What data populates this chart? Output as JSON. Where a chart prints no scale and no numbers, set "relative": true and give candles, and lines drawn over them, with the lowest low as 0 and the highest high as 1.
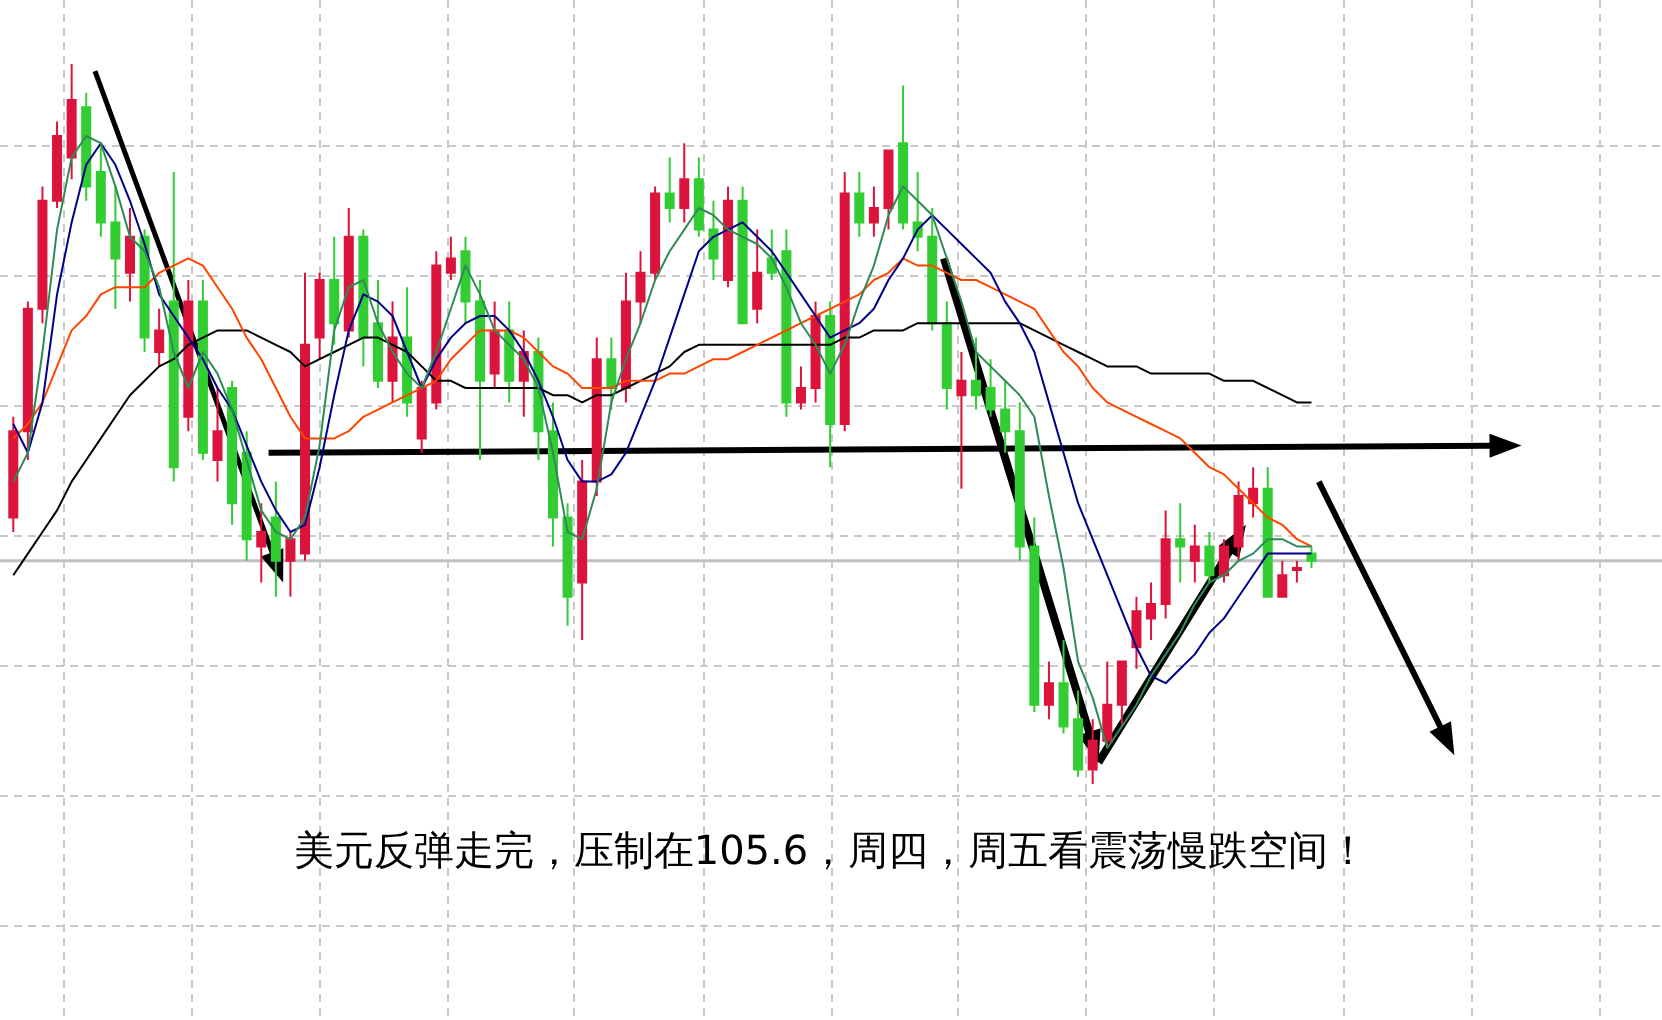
{
  "chart_data": {
    "type": "candlestick",
    "relative": true,
    "grid": true,
    "categories": [
      null,
      null,
      null,
      null,
      null,
      null,
      null,
      null,
      null,
      null,
      null,
      null,
      null,
      null,
      null,
      null,
      null,
      null,
      null,
      null,
      null,
      null,
      null,
      null,
      null,
      null,
      null,
      null,
      null,
      null,
      null,
      null,
      null,
      null,
      null,
      null,
      null,
      null,
      null,
      null,
      null,
      null,
      null,
      null,
      null,
      null,
      null,
      null,
      null,
      null,
      null,
      null,
      null,
      null,
      null,
      null,
      null,
      null,
      null,
      null,
      null,
      null,
      null,
      null,
      null,
      null,
      null,
      null,
      null,
      null,
      null,
      null,
      null,
      null,
      null,
      null,
      null,
      null,
      null,
      null,
      null,
      null,
      null,
      null,
      null,
      null,
      null,
      null,
      null,
      null
    ],
    "ohlc": [
      [
        0.37,
        0.51,
        0.35,
        0.49
      ],
      [
        0.49,
        0.67,
        0.45,
        0.66
      ],
      [
        0.66,
        0.83,
        0.64,
        0.81
      ],
      [
        0.81,
        0.92,
        0.8,
        0.9
      ],
      [
        0.87,
        1.0,
        0.84,
        0.95
      ],
      [
        0.94,
        0.96,
        0.81,
        0.83
      ],
      [
        0.85,
        0.89,
        0.76,
        0.78
      ],
      [
        0.78,
        0.83,
        0.66,
        0.73
      ],
      [
        0.71,
        0.8,
        0.67,
        0.76
      ],
      [
        0.76,
        0.77,
        0.6,
        0.62
      ],
      [
        0.6,
        0.66,
        0.58,
        0.63
      ],
      [
        0.67,
        0.85,
        0.42,
        0.44
      ],
      [
        0.51,
        0.7,
        0.49,
        0.67
      ],
      [
        0.67,
        0.7,
        0.45,
        0.46
      ],
      [
        0.45,
        0.55,
        0.42,
        0.49
      ],
      [
        0.55,
        0.56,
        0.36,
        0.39
      ],
      [
        0.46,
        0.49,
        0.31,
        0.34
      ],
      [
        0.33,
        0.39,
        0.28,
        0.35
      ],
      [
        0.37,
        0.42,
        0.26,
        0.31
      ],
      [
        0.31,
        0.35,
        0.26,
        0.34
      ],
      [
        0.32,
        0.71,
        0.31,
        0.61
      ],
      [
        0.62,
        0.71,
        0.59,
        0.7
      ],
      [
        0.7,
        0.76,
        0.61,
        0.64
      ],
      [
        0.63,
        0.8,
        0.62,
        0.76
      ],
      [
        0.76,
        0.77,
        0.58,
        0.62
      ],
      [
        0.64,
        0.7,
        0.55,
        0.56
      ],
      [
        0.56,
        0.67,
        0.53,
        0.62
      ],
      [
        0.62,
        0.69,
        0.51,
        0.53
      ],
      [
        0.48,
        0.56,
        0.46,
        0.55
      ],
      [
        0.53,
        0.74,
        0.52,
        0.72
      ],
      [
        0.71,
        0.76,
        0.7,
        0.73
      ],
      [
        0.74,
        0.76,
        0.64,
        0.67
      ],
      [
        0.67,
        0.7,
        0.45,
        0.56
      ],
      [
        0.57,
        0.67,
        0.55,
        0.63
      ],
      [
        0.63,
        0.67,
        0.53,
        0.56
      ],
      [
        0.56,
        0.63,
        0.51,
        0.6
      ],
      [
        0.6,
        0.62,
        0.45,
        0.49
      ],
      [
        0.49,
        0.53,
        0.33,
        0.37
      ],
      [
        0.37,
        0.39,
        0.22,
        0.26
      ],
      [
        0.28,
        0.45,
        0.2,
        0.42
      ],
      [
        0.42,
        0.62,
        0.4,
        0.59
      ],
      [
        0.59,
        0.62,
        0.52,
        0.55
      ],
      [
        0.55,
        0.71,
        0.53,
        0.67
      ],
      [
        0.67,
        0.74,
        0.64,
        0.71
      ],
      [
        0.71,
        0.83,
        0.7,
        0.82
      ],
      [
        0.82,
        0.87,
        0.78,
        0.8
      ],
      [
        0.8,
        0.89,
        0.78,
        0.84
      ],
      [
        0.84,
        0.87,
        0.76,
        0.77
      ],
      [
        0.77,
        0.81,
        0.7,
        0.73
      ],
      [
        0.7,
        0.83,
        0.69,
        0.81
      ],
      [
        0.81,
        0.83,
        0.64,
        0.64
      ],
      [
        0.66,
        0.77,
        0.64,
        0.71
      ],
      [
        0.73,
        0.77,
        0.7,
        0.71
      ],
      [
        0.74,
        0.77,
        0.51,
        0.53
      ],
      [
        0.53,
        0.58,
        0.52,
        0.55
      ],
      [
        0.55,
        0.67,
        0.53,
        0.65
      ],
      [
        0.65,
        0.67,
        0.44,
        0.5
      ],
      [
        0.5,
        0.85,
        0.49,
        0.82
      ],
      [
        0.82,
        0.85,
        0.76,
        0.78
      ],
      [
        0.78,
        0.83,
        0.76,
        0.8
      ],
      [
        0.8,
        0.88,
        0.77,
        0.88
      ],
      [
        0.89,
        0.97,
        0.77,
        0.78
      ],
      [
        0.78,
        0.85,
        0.74,
        0.76
      ],
      [
        0.76,
        0.8,
        0.63,
        0.64
      ],
      [
        0.64,
        0.67,
        0.52,
        0.55
      ],
      [
        0.54,
        0.6,
        0.41,
        0.56
      ],
      [
        0.56,
        0.62,
        0.52,
        0.54
      ],
      [
        0.55,
        0.59,
        0.51,
        0.52
      ],
      [
        0.52,
        0.56,
        0.46,
        0.49
      ],
      [
        0.49,
        0.53,
        0.31,
        0.33
      ],
      [
        0.33,
        0.37,
        0.1,
        0.11
      ],
      [
        0.11,
        0.17,
        0.09,
        0.14
      ],
      [
        0.14,
        0.2,
        0.07,
        0.08
      ],
      [
        0.09,
        0.13,
        0.01,
        0.02
      ],
      [
        0.02,
        0.09,
        0.0,
        0.06
      ],
      [
        0.06,
        0.17,
        0.05,
        0.11
      ],
      [
        0.11,
        0.17,
        0.08,
        0.17
      ],
      [
        0.19,
        0.26,
        0.16,
        0.24
      ],
      [
        0.23,
        0.28,
        0.2,
        0.25
      ],
      [
        0.25,
        0.38,
        0.23,
        0.34
      ],
      [
        0.34,
        0.39,
        0.28,
        0.33
      ],
      [
        0.31,
        0.36,
        0.28,
        0.33
      ],
      [
        0.33,
        0.35,
        0.28,
        0.29
      ],
      [
        0.29,
        0.34,
        0.28,
        0.33
      ],
      [
        0.33,
        0.42,
        0.31,
        0.4
      ],
      [
        0.39,
        0.44,
        0.37,
        0.41
      ],
      [
        0.41,
        0.44,
        0.26,
        0.26
      ],
      [
        0.26,
        0.31,
        0.26,
        0.29
      ],
      [
        0.3,
        0.31,
        0.28,
        0.3
      ],
      [
        0.32,
        0.33,
        0.3,
        0.31
      ]
    ],
    "colors": [
      "#dc143c",
      "#dc143c",
      "#dc143c",
      "#dc143c",
      "#dc143c",
      "#32cd32",
      "#32cd32",
      "#32cd32",
      "#dc143c",
      "#32cd32",
      "#dc143c",
      "#32cd32",
      "#dc143c",
      "#32cd32",
      "#dc143c",
      "#32cd32",
      "#32cd32",
      "#dc143c",
      "#32cd32",
      "#dc143c",
      "#dc143c",
      "#dc143c",
      "#32cd32",
      "#dc143c",
      "#32cd32",
      "#32cd32",
      "#dc143c",
      "#32cd32",
      "#dc143c",
      "#dc143c",
      "#dc143c",
      "#32cd32",
      "#32cd32",
      "#dc143c",
      "#32cd32",
      "#dc143c",
      "#32cd32",
      "#32cd32",
      "#32cd32",
      "#dc143c",
      "#dc143c",
      "#32cd32",
      "#dc143c",
      "#dc143c",
      "#dc143c",
      "#32cd32",
      "#dc143c",
      "#32cd32",
      "#32cd32",
      "#dc143c",
      "#32cd32",
      "#dc143c",
      "#32cd32",
      "#32cd32",
      "#dc143c",
      "#dc143c",
      "#32cd32",
      "#dc143c",
      "#32cd32",
      "#dc143c",
      "#dc143c",
      "#32cd32",
      "#32cd32",
      "#32cd32",
      "#32cd32",
      "#dc143c",
      "#32cd32",
      "#32cd32",
      "#32cd32",
      "#32cd32",
      "#32cd32",
      "#dc143c",
      "#32cd32",
      "#32cd32",
      "#dc143c",
      "#dc143c",
      "#dc143c",
      "#dc143c",
      "#dc143c",
      "#dc143c",
      "#32cd32",
      "#dc143c",
      "#32cd32",
      "#dc143c",
      "#dc143c",
      "#dc143c",
      "#32cd32",
      "#dc143c",
      "#dc143c",
      "#32cd32"
    ],
    "series": [
      {
        "type": "line",
        "color": "#000000",
        "values": [
          0.29,
          0.32,
          0.35,
          0.38,
          0.42,
          0.45,
          0.48,
          0.51,
          0.54,
          0.56,
          0.58,
          0.59,
          0.61,
          0.62,
          0.63,
          0.63,
          0.63,
          0.62,
          0.61,
          0.6,
          0.58,
          0.59,
          0.6,
          0.61,
          0.62,
          0.62,
          0.61,
          0.6,
          0.58,
          0.56,
          0.56,
          0.55,
          0.55,
          0.55,
          0.55,
          0.55,
          0.55,
          0.54,
          0.54,
          0.53,
          0.54,
          0.54,
          0.55,
          0.56,
          0.57,
          0.58,
          0.6,
          0.61,
          0.61,
          0.61,
          0.61,
          0.61,
          0.61,
          0.61,
          0.61,
          0.61,
          0.61,
          0.62,
          0.62,
          0.63,
          0.63,
          0.63,
          0.64,
          0.64,
          0.64,
          0.64,
          0.64,
          0.64,
          0.64,
          0.64,
          0.63,
          0.62,
          0.61,
          0.6,
          0.59,
          0.58,
          0.58,
          0.58,
          0.57,
          0.57,
          0.57,
          0.57,
          0.57,
          0.56,
          0.56,
          0.56,
          0.55,
          0.54,
          0.53,
          0.53
        ]
      },
      {
        "type": "line",
        "color": "#ff4500",
        "values": [
          0.48,
          0.5,
          0.53,
          0.58,
          0.63,
          0.65,
          0.68,
          0.69,
          0.69,
          0.69,
          0.71,
          0.72,
          0.73,
          0.72,
          0.69,
          0.66,
          0.62,
          0.59,
          0.55,
          0.51,
          0.48,
          0.48,
          0.48,
          0.49,
          0.51,
          0.52,
          0.53,
          0.54,
          0.55,
          0.56,
          0.59,
          0.61,
          0.63,
          0.63,
          0.63,
          0.62,
          0.6,
          0.58,
          0.57,
          0.55,
          0.55,
          0.55,
          0.56,
          0.56,
          0.56,
          0.57,
          0.57,
          0.58,
          0.59,
          0.59,
          0.6,
          0.61,
          0.62,
          0.63,
          0.64,
          0.65,
          0.66,
          0.67,
          0.68,
          0.7,
          0.71,
          0.73,
          0.72,
          0.72,
          0.71,
          0.7,
          0.7,
          0.69,
          0.68,
          0.67,
          0.66,
          0.63,
          0.6,
          0.58,
          0.55,
          0.53,
          0.52,
          0.51,
          0.5,
          0.49,
          0.48,
          0.46,
          0.44,
          0.43,
          0.41,
          0.39,
          0.37,
          0.36,
          0.34,
          0.33
        ]
      },
      {
        "type": "line",
        "color": "#00008b",
        "values": [
          0.5,
          0.46,
          0.53,
          0.68,
          0.78,
          0.86,
          0.89,
          0.86,
          0.81,
          0.75,
          0.68,
          0.65,
          0.62,
          0.59,
          0.55,
          0.52,
          0.47,
          0.42,
          0.38,
          0.35,
          0.36,
          0.44,
          0.54,
          0.63,
          0.68,
          0.67,
          0.65,
          0.6,
          0.55,
          0.59,
          0.62,
          0.64,
          0.65,
          0.65,
          0.63,
          0.6,
          0.56,
          0.51,
          0.45,
          0.42,
          0.42,
          0.43,
          0.46,
          0.51,
          0.56,
          0.62,
          0.68,
          0.74,
          0.76,
          0.77,
          0.78,
          0.76,
          0.74,
          0.71,
          0.68,
          0.65,
          0.62,
          0.63,
          0.64,
          0.66,
          0.7,
          0.73,
          0.77,
          0.79,
          0.77,
          0.75,
          0.73,
          0.71,
          0.67,
          0.64,
          0.6,
          0.53,
          0.46,
          0.39,
          0.34,
          0.29,
          0.24,
          0.19,
          0.15,
          0.14,
          0.16,
          0.18,
          0.21,
          0.23,
          0.26,
          0.29,
          0.32,
          0.32,
          0.32,
          0.32
        ]
      },
      {
        "type": "line",
        "color": "#2e8b57",
        "values": [
          0.42,
          0.46,
          0.6,
          0.77,
          0.87,
          0.9,
          0.89,
          0.83,
          0.76,
          0.74,
          0.69,
          0.6,
          0.55,
          0.6,
          0.57,
          0.52,
          0.45,
          0.38,
          0.35,
          0.34,
          0.37,
          0.47,
          0.63,
          0.69,
          0.7,
          0.64,
          0.6,
          0.57,
          0.55,
          0.6,
          0.66,
          0.72,
          0.68,
          0.63,
          0.61,
          0.59,
          0.55,
          0.46,
          0.35,
          0.34,
          0.41,
          0.53,
          0.59,
          0.64,
          0.7,
          0.74,
          0.77,
          0.8,
          0.79,
          0.77,
          0.76,
          0.75,
          0.73,
          0.69,
          0.64,
          0.61,
          0.57,
          0.61,
          0.67,
          0.72,
          0.79,
          0.83,
          0.81,
          0.79,
          0.73,
          0.67,
          0.6,
          0.58,
          0.56,
          0.54,
          0.51,
          0.4,
          0.3,
          0.17,
          0.12,
          0.05,
          0.08,
          0.11,
          0.15,
          0.18,
          0.21,
          0.25,
          0.28,
          0.29,
          0.31,
          0.32,
          0.34,
          0.34,
          0.33,
          0.33
        ]
      }
    ],
    "ref_lines": [
      {
        "axis": "y",
        "value": 0.31,
        "color": "#c0c0c0"
      }
    ],
    "annotations": [
      "美元反弹走完，压制在105.6，周四，周五看震荡慢跌空间！"
    ]
  }
}
